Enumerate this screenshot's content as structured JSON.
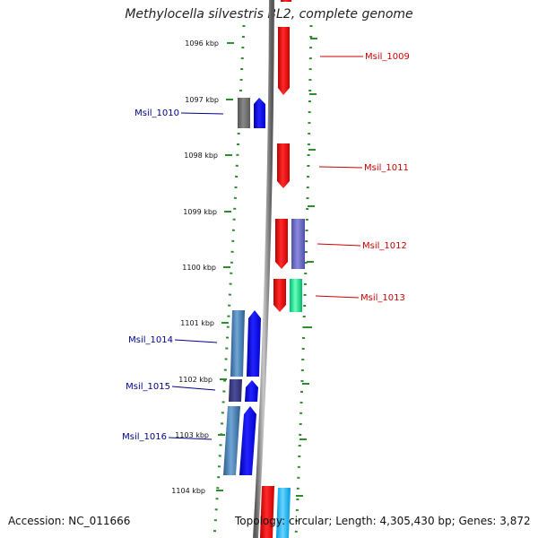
{
  "title": "Methylocella silvestris BL2, complete genome",
  "footer": {
    "accession": "Accession: NC_011666",
    "topology": "Topology: circular; Length: 4,305,430 bp; Genes: 3,872"
  },
  "axis_ticks": [
    "1096 kbp",
    "1097 kbp",
    "1098 kbp",
    "1099 kbp",
    "1100 kbp",
    "1101 kbp",
    "1102 kbp",
    "1103 kbp",
    "1104 kbp"
  ],
  "gene_labels": {
    "left": [
      "Msil_1010",
      "Msil_1014",
      "Msil_1015",
      "Msil_1016"
    ],
    "right": [
      "Msil_1009",
      "Msil_1011",
      "Msil_1012",
      "Msil_1013"
    ]
  },
  "colors": {
    "forward_strand": "#0000ee",
    "reverse_strand": "#ee0000",
    "tick_green": "#2e8b2e",
    "backbone": "#808080",
    "left_label": "#00008b",
    "right_label": "#cc0000"
  }
}
